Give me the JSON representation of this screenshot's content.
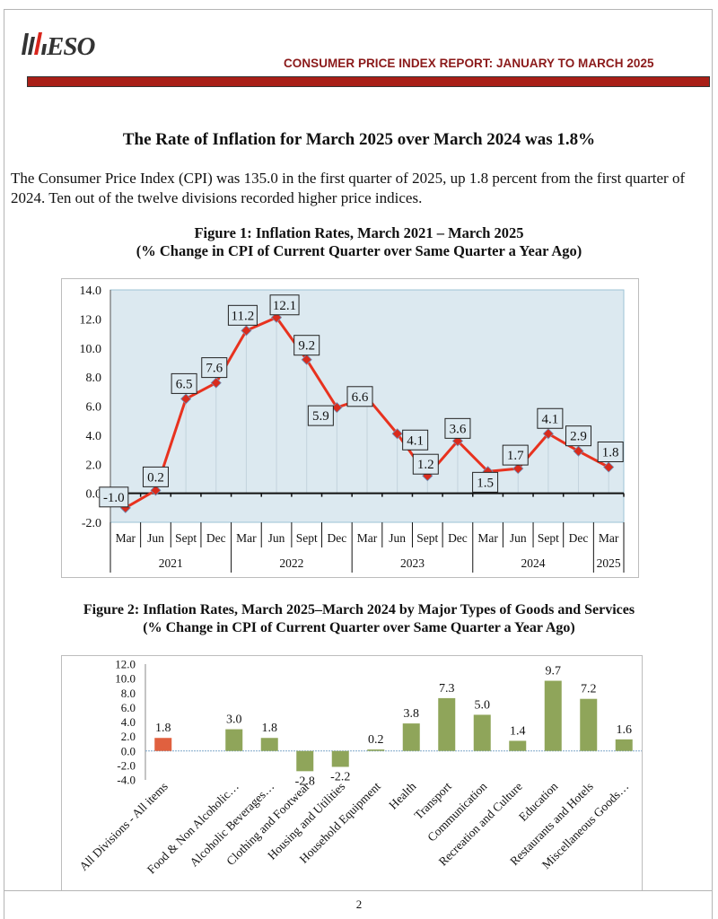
{
  "header": {
    "logo_text": "ESO",
    "report_title": "CONSUMER PRICE INDEX REPORT: JANUARY TO MARCH 2025",
    "accent_color": "#a91f17"
  },
  "headline": "The Rate of Inflation for March 2025 over March 2024 was 1.8%",
  "intro_text": "The Consumer Price Index (CPI) was 135.0 in the first quarter of 2025, up 1.8 percent from the first quarter of 2024. Ten out of the twelve divisions recorded higher price indices.",
  "figure1": {
    "title_line1": "Figure 1: Inflation Rates, March 2021 – March 2025",
    "title_line2": "(% Change in CPI of Current Quarter over Same Quarter a Year Ago)"
  },
  "figure2": {
    "title_line1": "Figure 2: Inflation Rates, March 2025–March 2024 by Major Types of Goods and Services",
    "title_line2": "(% Change in CPI of Current Quarter over Same Quarter a Year Ago)"
  },
  "page_number": "2",
  "chart_data": [
    {
      "type": "line",
      "title": "Figure 1: Inflation Rates, March 2021 – March 2025",
      "subtitle": "(% Change in CPI of Current Quarter over Same Quarter a Year Ago)",
      "xlabel": "",
      "ylabel": "",
      "categories": [
        "Mar",
        "Jun",
        "Sept",
        "Dec",
        "Mar",
        "Jun",
        "Sept",
        "Dec",
        "Mar",
        "Jun",
        "Sept",
        "Dec",
        "Mar",
        "Jun",
        "Sept",
        "Dec",
        "Mar"
      ],
      "year_groups": [
        {
          "label": "2021",
          "count": 4
        },
        {
          "label": "2022",
          "count": 4
        },
        {
          "label": "2023",
          "count": 4
        },
        {
          "label": "2024",
          "count": 4
        },
        {
          "label": "2025",
          "count": 1
        }
      ],
      "series": [
        {
          "name": "Inflation Rate",
          "color": "#e8321f",
          "marker_color": "#d92b1c",
          "values": [
            -1.0,
            0.2,
            6.5,
            7.6,
            11.2,
            12.1,
            9.2,
            5.9,
            6.6,
            4.1,
            1.2,
            3.6,
            1.5,
            1.7,
            4.1,
            2.9,
            1.8
          ]
        }
      ],
      "data_labels": [
        "-1.0",
        "0.2",
        "6.5",
        "7.6",
        "11.2",
        "12.1",
        "9.2",
        "5.9",
        "6.6",
        "4.1",
        "1.2",
        "3.6",
        "1.5",
        "1.7",
        "4.1",
        "2.9",
        "1.8"
      ],
      "ylim": [
        -2.0,
        14.0
      ],
      "yticks": [
        "14.0",
        "12.0",
        "10.0",
        "8.0",
        "6.0",
        "4.0",
        "2.0",
        "0.0",
        "-2.0"
      ],
      "grid": false,
      "plot_background": "#dce9f0",
      "legend": "none"
    },
    {
      "type": "bar",
      "title": "Figure 2: Inflation Rates, March 2025–March 2024 by Major Types of Goods and Services",
      "subtitle": "(% Change in CPI of Current Quarter over Same Quarter a Year Ago)",
      "xlabel": "",
      "ylabel": "",
      "categories": [
        "All Divisions - All items",
        "Food & Non Alcoholic…",
        "Alcoholic Beverages…",
        "Clothing and Footwear",
        "Housing and Utilities",
        "Household Equipment",
        "Health",
        "Transport",
        "Communication",
        "Recreation and Culture",
        "Education",
        "Restaurants and Hotels",
        "Miscellaneous Goods…"
      ],
      "values": [
        1.8,
        3.0,
        1.8,
        -2.8,
        -2.2,
        0.2,
        3.8,
        7.3,
        5.0,
        1.4,
        9.7,
        7.2,
        1.6
      ],
      "data_labels": [
        "1.8",
        "3.0",
        "1.8",
        "-2.8",
        "-2.2",
        "0.2",
        "3.8",
        "7.3",
        "5.0",
        "1.4",
        "9.7",
        "7.2",
        "1.6"
      ],
      "bar_colors": [
        "#e0603f",
        "#8fa55a",
        "#8fa55a",
        "#8fa55a",
        "#8fa55a",
        "#8fa55a",
        "#8fa55a",
        "#8fa55a",
        "#8fa55a",
        "#8fa55a",
        "#8fa55a",
        "#8fa55a",
        "#8fa55a"
      ],
      "ylim": [
        -4.0,
        12.0
      ],
      "yticks": [
        "12.0",
        "10.0",
        "8.0",
        "6.0",
        "4.0",
        "2.0",
        "0.0",
        "-2.0",
        "-4.0"
      ],
      "grid": false,
      "legend": "none"
    }
  ]
}
